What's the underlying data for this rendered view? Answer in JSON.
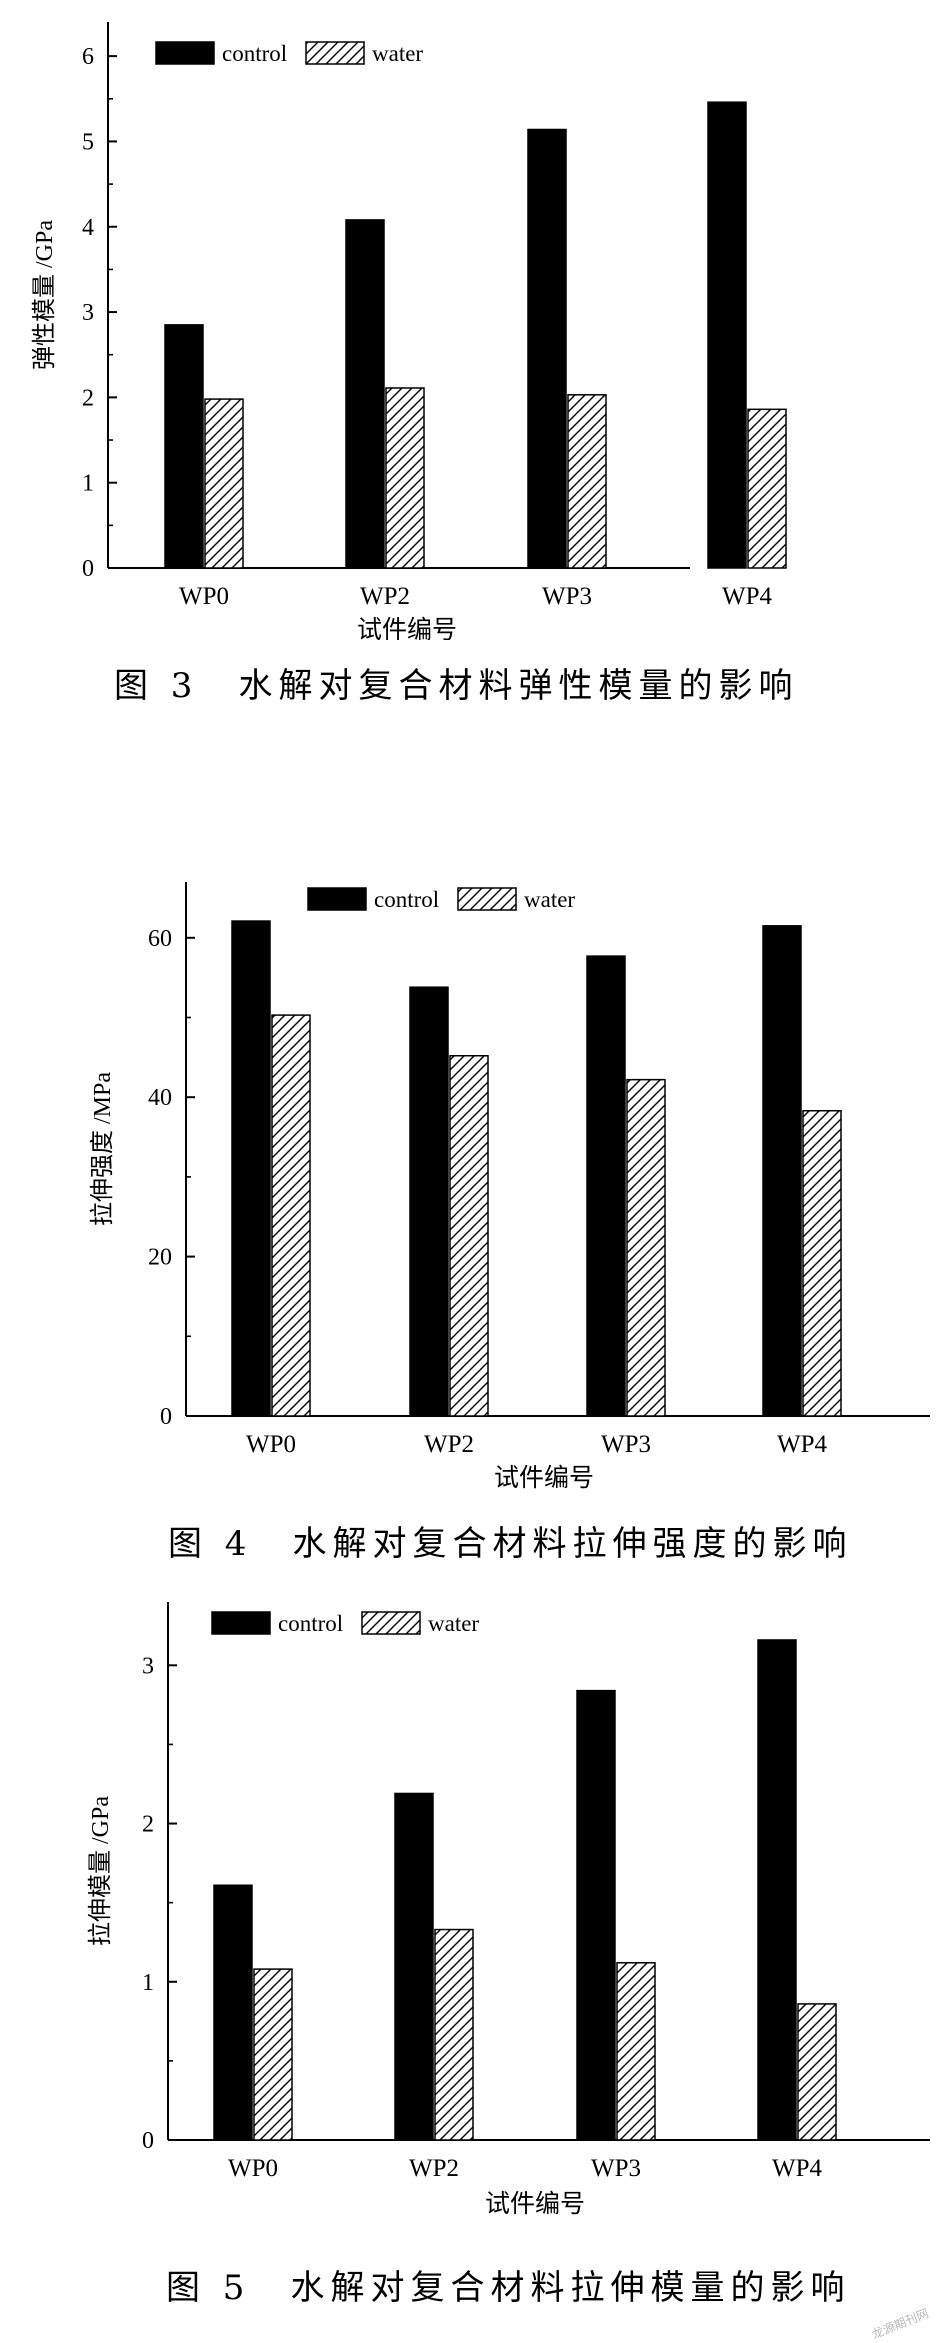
{
  "chart_data": [
    {
      "type": "bar",
      "categories": [
        "WP0",
        "WP2",
        "WP3",
        "WP4"
      ],
      "series": [
        {
          "name": "control",
          "values": [
            2.85,
            4.08,
            5.14,
            5.46
          ]
        },
        {
          "name": "water",
          "values": [
            1.98,
            2.11,
            2.03,
            1.86
          ]
        }
      ],
      "xlabel": "试件编号",
      "ylabel": "弹性模量 /GPa",
      "ylim": [
        0,
        6.4
      ],
      "yticks": [
        "0",
        "1",
        "2",
        "3",
        "4",
        "5",
        "6"
      ],
      "legend": "top-left",
      "caption": "图 3　水解对复合材料弹性模量的影响"
    },
    {
      "type": "bar",
      "categories": [
        "WP0",
        "WP2",
        "WP3",
        "WP4"
      ],
      "series": [
        {
          "name": "control",
          "values": [
            62.1,
            53.8,
            57.7,
            61.5
          ]
        },
        {
          "name": "water",
          "values": [
            50.3,
            45.2,
            42.2,
            38.3
          ]
        }
      ],
      "xlabel": "试件编号",
      "ylabel": "拉伸强度 /MPa",
      "ylim": [
        0,
        67
      ],
      "yticks": [
        "0",
        "20",
        "40",
        "60"
      ],
      "legend": "top",
      "caption": "图 4　水解对复合材料拉伸强度的影响"
    },
    {
      "type": "bar",
      "categories": [
        "WP0",
        "WP2",
        "WP3",
        "WP4"
      ],
      "series": [
        {
          "name": "control",
          "values": [
            1.61,
            2.19,
            2.84,
            3.16
          ]
        },
        {
          "name": "water",
          "values": [
            1.08,
            1.33,
            1.12,
            0.86
          ]
        }
      ],
      "xlabel": "试件编号",
      "ylabel": "拉伸模量 /GPa",
      "ylim": [
        0,
        3.4
      ],
      "yticks": [
        "0",
        "1",
        "2",
        "3"
      ],
      "legend": "top-left",
      "caption": "图 5　水解对复合材料拉伸模量的影响"
    }
  ],
  "colors": {
    "control": "#000000",
    "water": "#ffffff",
    "hatch": "#000000"
  },
  "watermark": "龙源期刊网"
}
